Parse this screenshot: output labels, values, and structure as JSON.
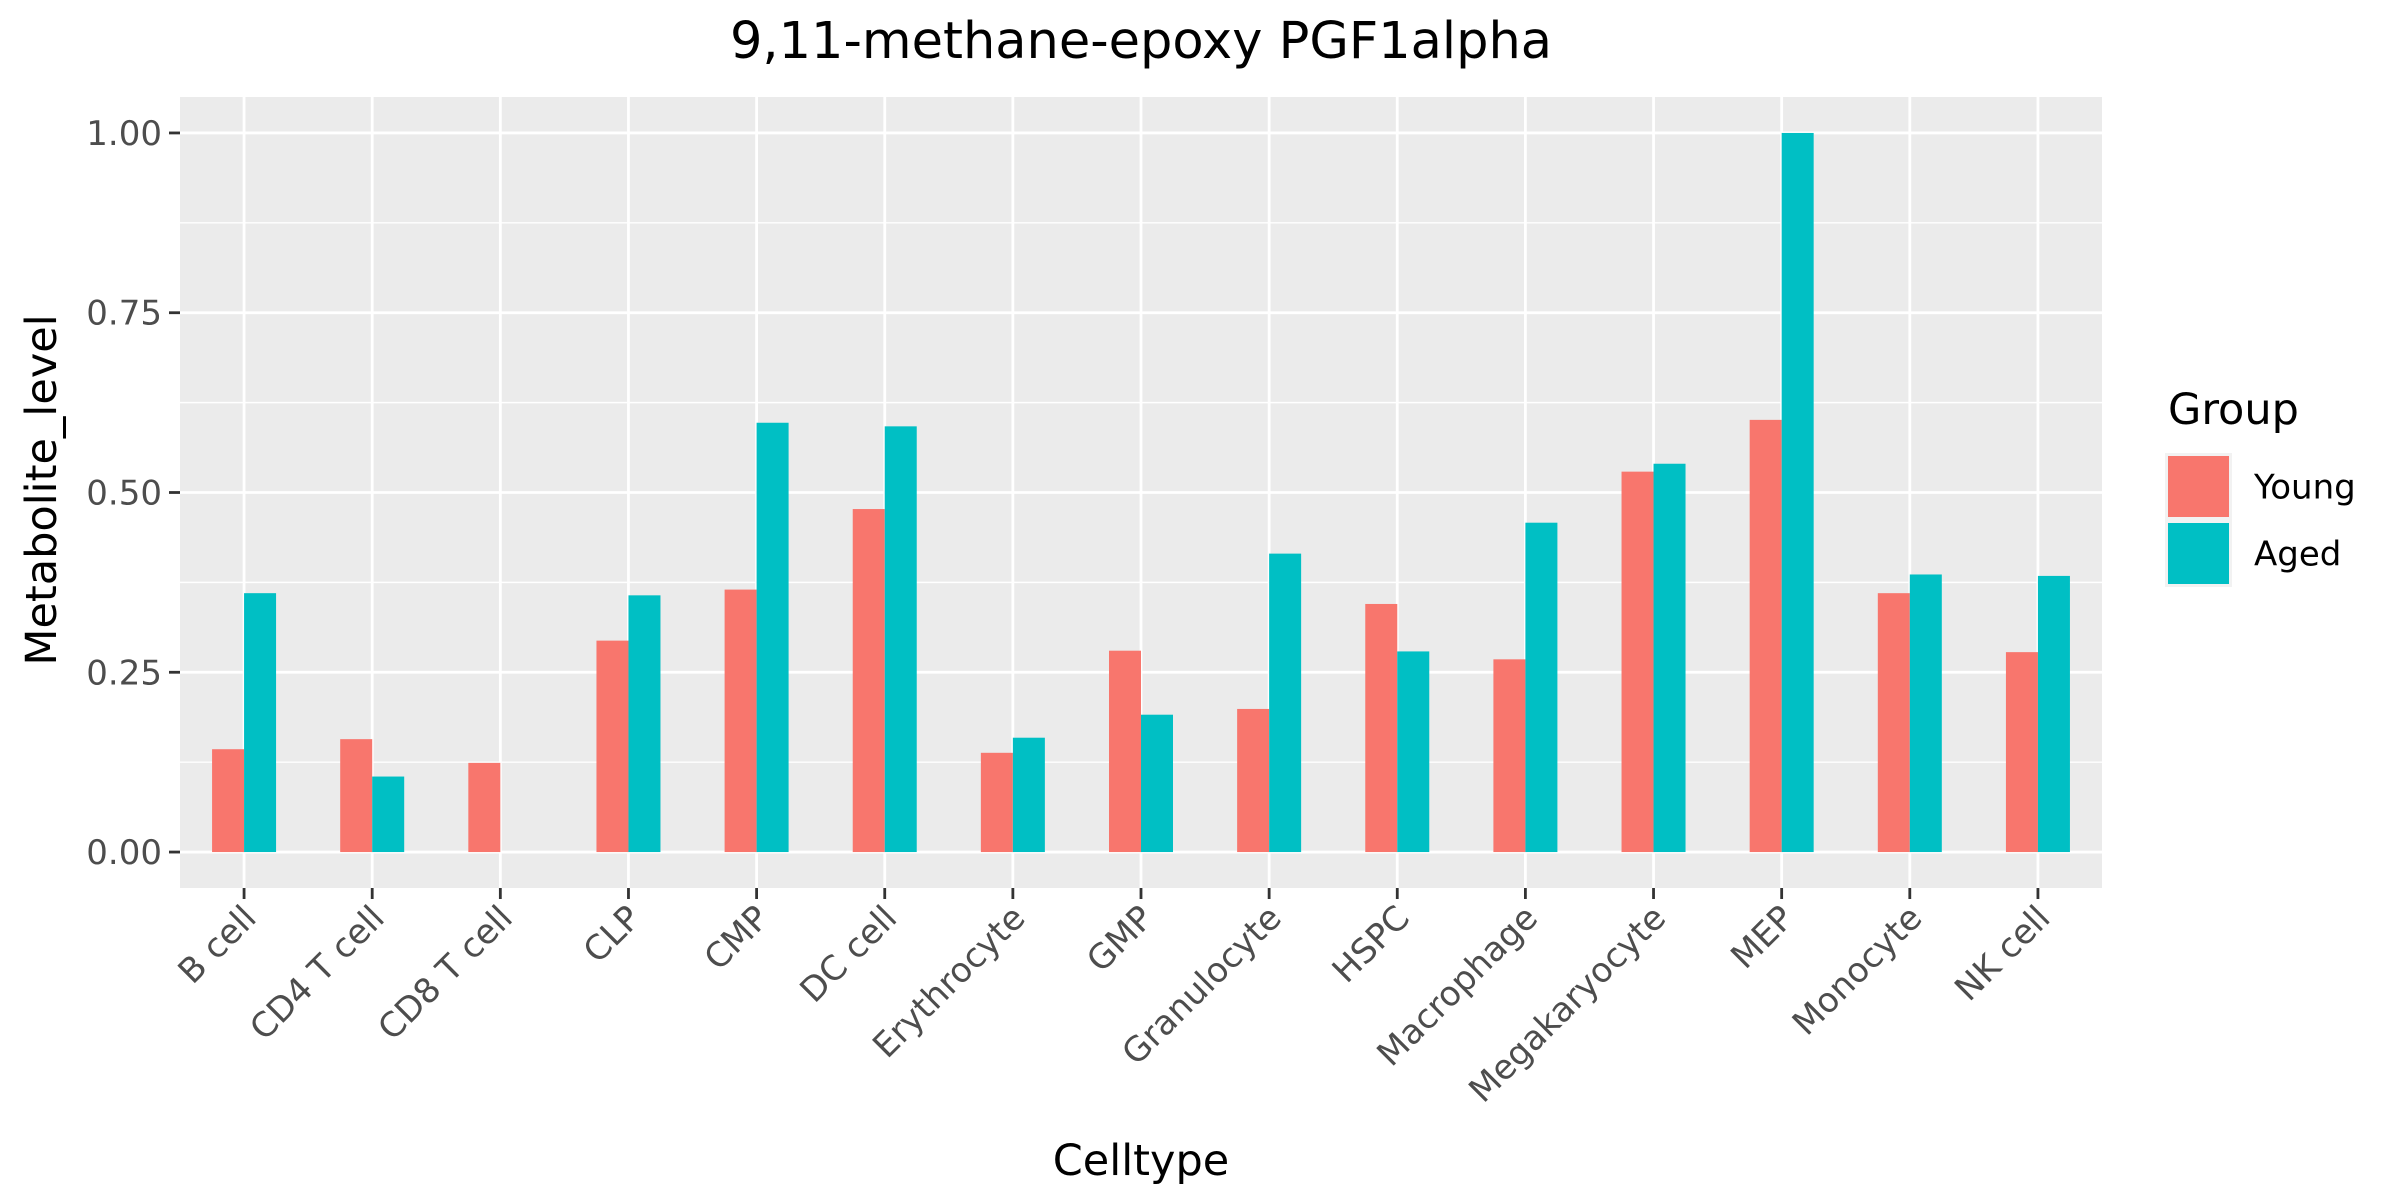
{
  "chart_data": {
    "type": "bar",
    "title": "9,11-methane-epoxy PGF1alpha",
    "xlabel": "Celltype",
    "ylabel": "Metabolite_level",
    "categories": [
      "B cell",
      "CD4 T cell",
      "CD8 T cell",
      "CLP",
      "CMP",
      "DC cell",
      "Erythrocyte",
      "GMP",
      "Granulocyte",
      "HSPC",
      "Macrophage",
      "Megakaryocyte",
      "MEP",
      "Monocyte",
      "NK cell"
    ],
    "series": [
      {
        "name": "Young",
        "color": "#F8766D",
        "values": [
          0.143,
          0.157,
          0.124,
          0.294,
          0.365,
          0.477,
          0.138,
          0.28,
          0.199,
          0.345,
          0.268,
          0.529,
          0.601,
          0.36,
          0.278
        ]
      },
      {
        "name": "Aged",
        "color": "#00BFC4",
        "values": [
          0.36,
          0.105,
          null,
          0.357,
          0.597,
          0.592,
          0.159,
          0.191,
          0.415,
          0.279,
          0.458,
          0.54,
          1.0,
          0.386,
          0.384
        ]
      }
    ],
    "yticks": [
      "0.00",
      "0.25",
      "0.50",
      "0.75",
      "1.00"
    ],
    "ytick_values": [
      0,
      0.25,
      0.5,
      0.75,
      1.0
    ],
    "ylim": [
      -0.05,
      1.05
    ],
    "grid": true,
    "legend": {
      "title": "Group",
      "placement": "right"
    },
    "panel_background": "#EBEBEB",
    "grid_color": "#FFFFFF"
  }
}
